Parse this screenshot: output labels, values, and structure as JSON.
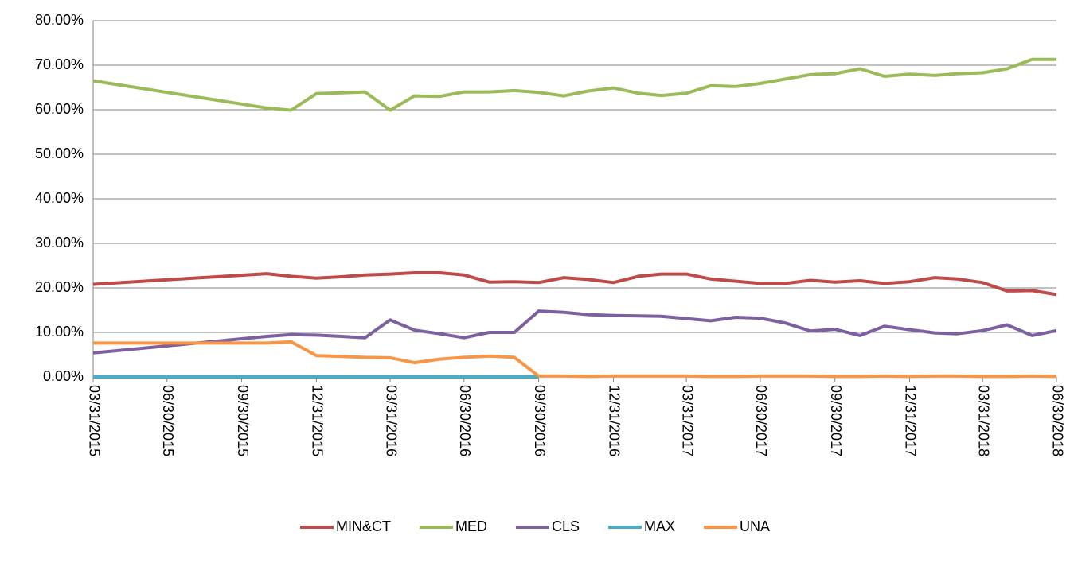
{
  "chart_data": {
    "type": "line",
    "x": [
      "03/31/2015",
      "10/31/2015",
      "11/30/2015",
      "12/31/2015",
      "01/31/2016",
      "02/29/2016",
      "03/31/2016",
      "04/30/2016",
      "05/31/2016",
      "06/30/2016",
      "07/31/2016",
      "08/31/2016",
      "09/30/2016",
      "10/31/2016",
      "11/30/2016",
      "12/31/2016",
      "01/31/2017",
      "02/28/2017",
      "03/31/2017",
      "04/30/2017",
      "05/31/2017",
      "06/30/2017",
      "07/31/2017",
      "08/31/2017",
      "09/30/2017",
      "10/31/2017",
      "11/30/2017",
      "12/31/2017",
      "01/31/2018",
      "02/28/2018",
      "03/31/2018",
      "04/30/2018",
      "05/31/2018",
      "06/30/2018"
    ],
    "xlim": [
      "03/31/2015",
      "06/30/2018"
    ],
    "xticks": [
      "03/31/2015",
      "06/30/2015",
      "09/30/2015",
      "12/31/2015",
      "03/31/2016",
      "06/30/2016",
      "09/30/2016",
      "12/31/2016",
      "03/31/2017",
      "06/30/2017",
      "09/30/2017",
      "12/31/2017",
      "03/31/2018",
      "06/30/2018"
    ],
    "ylim": [
      0,
      80
    ],
    "yticks": [
      {
        "value": 0,
        "label": "0.00%"
      },
      {
        "value": 10,
        "label": "10.00%"
      },
      {
        "value": 20,
        "label": "20.00%"
      },
      {
        "value": 30,
        "label": "30.00%"
      },
      {
        "value": 40,
        "label": "40.00%"
      },
      {
        "value": 50,
        "label": "50.00%"
      },
      {
        "value": 60,
        "label": "60.00%"
      },
      {
        "value": 70,
        "label": "70.00%"
      },
      {
        "value": 80,
        "label": "80.00%"
      }
    ],
    "grid": true,
    "legend": "bottom",
    "series": [
      {
        "name": "MIN&CT",
        "color": "#be4b48",
        "values": [
          20.8,
          23.2,
          22.6,
          22.2,
          22.5,
          22.9,
          23.1,
          23.4,
          23.4,
          22.9,
          21.3,
          21.4,
          21.2,
          22.3,
          21.9,
          21.2,
          22.6,
          23.1,
          23.1,
          22.0,
          21.5,
          21.0,
          21.0,
          21.7,
          21.3,
          21.6,
          21.0,
          21.4,
          22.3,
          22.0,
          21.2,
          19.3,
          19.4,
          18.5
        ]
      },
      {
        "name": "MED",
        "color": "#9bbb59",
        "values": [
          66.5,
          60.4,
          59.9,
          63.6,
          63.8,
          64.0,
          59.9,
          63.1,
          63.0,
          64.0,
          64.0,
          64.3,
          63.9,
          63.1,
          64.2,
          64.9,
          63.7,
          63.2,
          63.7,
          65.4,
          65.2,
          65.9,
          66.9,
          67.9,
          68.1,
          69.2,
          67.5,
          68.0,
          67.7,
          68.1,
          68.3,
          69.2,
          71.3,
          71.3
        ]
      },
      {
        "name": "CLS",
        "color": "#7d60a0",
        "values": [
          5.4,
          9.1,
          9.5,
          9.4,
          9.1,
          8.8,
          12.8,
          10.5,
          9.7,
          8.8,
          10.0,
          10.0,
          14.8,
          14.5,
          14.0,
          13.8,
          13.7,
          13.6,
          13.1,
          12.6,
          13.4,
          13.2,
          12.1,
          10.3,
          10.7,
          9.3,
          11.4,
          10.6,
          9.9,
          9.7,
          10.4,
          11.7,
          9.3,
          10.4
        ]
      },
      {
        "name": "MAX",
        "color": "#4bacc6",
        "values": [
          0,
          0,
          0,
          0,
          0,
          0,
          0,
          0,
          0,
          0,
          0,
          0,
          0,
          null,
          null,
          null,
          null,
          null,
          null,
          null,
          null,
          null,
          null,
          null,
          null,
          null,
          null,
          null,
          null,
          null,
          null,
          null,
          null,
          null
        ]
      },
      {
        "name": "UNA",
        "color": "#f79646",
        "values": [
          7.6,
          7.6,
          7.9,
          4.8,
          4.6,
          4.4,
          4.3,
          3.2,
          4.0,
          4.4,
          4.7,
          4.4,
          0.2,
          0.2,
          0.1,
          0.2,
          0.2,
          0.2,
          0.2,
          0.1,
          0.1,
          0.2,
          0.2,
          0.2,
          0.1,
          0.1,
          0.2,
          0.1,
          0.2,
          0.2,
          0.1,
          0.1,
          0.2,
          0.1
        ]
      }
    ]
  }
}
